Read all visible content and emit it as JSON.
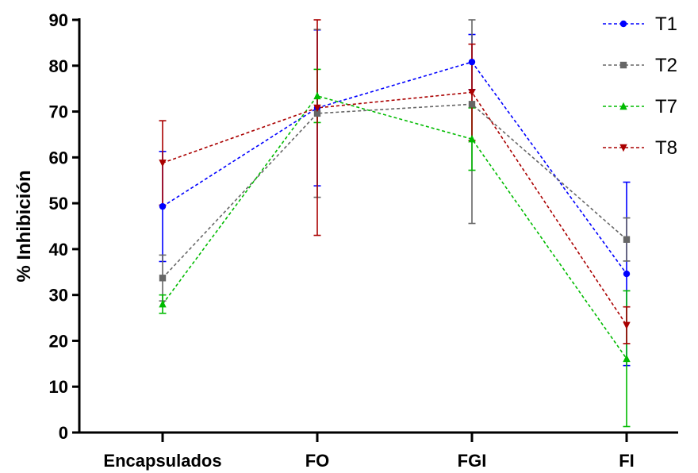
{
  "chart_data": {
    "type": "line",
    "title": "",
    "xlabel": "",
    "ylabel": "% Inhibición",
    "categories": [
      "Encapsulados",
      "FO",
      "FGI",
      "FI"
    ],
    "ylim": [
      0,
      90
    ],
    "yticks": [
      0,
      10,
      20,
      30,
      40,
      50,
      60,
      70,
      80,
      90
    ],
    "grid": false,
    "legend": "top-right",
    "series": [
      {
        "name": "T1",
        "color": "#0000ff",
        "marker": "circle",
        "values": [
          49.3,
          70.8,
          80.8,
          34.6
        ],
        "errors": [
          12.0,
          17.0,
          6.0,
          20.0
        ]
      },
      {
        "name": "T2",
        "color": "#666666",
        "marker": "square",
        "values": [
          33.7,
          69.6,
          71.6,
          42.1
        ],
        "errors": [
          5.0,
          18.3,
          26.0,
          4.7
        ]
      },
      {
        "name": "T7",
        "color": "#00bb00",
        "marker": "triangle-up",
        "values": [
          28.0,
          73.4,
          64.0,
          16.1
        ],
        "errors": [
          2.0,
          5.8,
          6.8,
          14.8
        ]
      },
      {
        "name": "T8",
        "color": "#aa0000",
        "marker": "triangle-down",
        "values": [
          58.8,
          70.8,
          74.2,
          23.4
        ],
        "errors": [
          9.2,
          27.8,
          10.5,
          4.0
        ]
      }
    ]
  }
}
